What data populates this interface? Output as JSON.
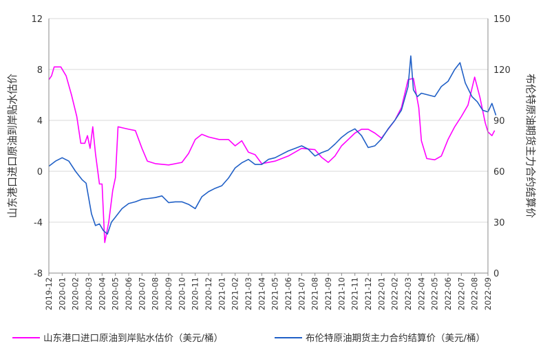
{
  "chart_data": {
    "type": "line",
    "title": "",
    "left_axis": {
      "label": "山东港口进口原油到岸贴水估价",
      "ticks": [
        "12",
        "8",
        "4",
        "0",
        "-4",
        "-8"
      ],
      "ylim": [
        -8,
        12
      ]
    },
    "right_axis": {
      "label": "布伦特原油期货主力合约结算价",
      "ticks": [
        "150",
        "120",
        "90",
        "60",
        "30",
        "0"
      ],
      "ylim": [
        0,
        150
      ]
    },
    "x_ticks": [
      "2019-12",
      "2020-01",
      "2020-02",
      "2020-03",
      "2020-04",
      "2020-05",
      "2020-06",
      "2020-07",
      "2020-08",
      "2020-09",
      "2020-10",
      "2020-11",
      "2020-12",
      "2021-01",
      "2021-02",
      "2021-03",
      "2021-04",
      "2021-05",
      "2021-06",
      "2021-07",
      "2021-08",
      "2021-09",
      "2021-10",
      "2021-11",
      "2021-12",
      "2022-01",
      "2022-02",
      "2022-03",
      "2022-04",
      "2022-05",
      "2022-06",
      "2022-07",
      "2022-08",
      "2022-09"
    ],
    "grid": true,
    "legend_position": "bottom",
    "series": [
      {
        "name": "山东港口进口原油到岸贴水估价（美元/桶）",
        "axis": "left",
        "color": "#ff00ff",
        "points": [
          [
            0,
            7.2
          ],
          [
            0.2,
            7.5
          ],
          [
            0.4,
            8.2
          ],
          [
            0.9,
            8.2
          ],
          [
            1.3,
            7.5
          ],
          [
            1.7,
            6.0
          ],
          [
            2.1,
            4.3
          ],
          [
            2.4,
            2.2
          ],
          [
            2.7,
            2.2
          ],
          [
            2.9,
            2.8
          ],
          [
            3.1,
            1.8
          ],
          [
            3.3,
            3.5
          ],
          [
            3.5,
            1.4
          ],
          [
            3.8,
            -1.0
          ],
          [
            4.0,
            -1.0
          ],
          [
            4.2,
            -5.6
          ],
          [
            4.5,
            -4.0
          ],
          [
            4.8,
            -1.5
          ],
          [
            5.0,
            -0.5
          ],
          [
            5.2,
            3.5
          ],
          [
            5.6,
            3.4
          ],
          [
            6.0,
            3.3
          ],
          [
            6.5,
            3.2
          ],
          [
            7.0,
            1.8
          ],
          [
            7.4,
            0.8
          ],
          [
            8.0,
            0.6
          ],
          [
            9.0,
            0.5
          ],
          [
            10.0,
            0.7
          ],
          [
            10.5,
            1.4
          ],
          [
            11.0,
            2.5
          ],
          [
            11.5,
            2.9
          ],
          [
            12.0,
            2.7
          ],
          [
            12.8,
            2.5
          ],
          [
            13.5,
            2.5
          ],
          [
            14.0,
            2.0
          ],
          [
            14.5,
            2.4
          ],
          [
            15.0,
            1.5
          ],
          [
            15.5,
            1.3
          ],
          [
            16.0,
            0.6
          ],
          [
            17.0,
            0.8
          ],
          [
            18.0,
            1.2
          ],
          [
            19.0,
            1.8
          ],
          [
            20.0,
            1.7
          ],
          [
            20.5,
            1.1
          ],
          [
            21.0,
            0.7
          ],
          [
            21.5,
            1.2
          ],
          [
            22.0,
            2.0
          ],
          [
            22.5,
            2.5
          ],
          [
            23.0,
            3.0
          ],
          [
            23.5,
            3.3
          ],
          [
            24.0,
            3.3
          ],
          [
            24.5,
            3.0
          ],
          [
            25.0,
            2.6
          ],
          [
            25.5,
            3.3
          ],
          [
            26.0,
            4.0
          ],
          [
            26.5,
            5.0
          ],
          [
            27.0,
            7.2
          ],
          [
            27.4,
            7.3
          ],
          [
            27.8,
            5.0
          ],
          [
            28.0,
            2.4
          ],
          [
            28.4,
            1.0
          ],
          [
            29.0,
            0.9
          ],
          [
            29.5,
            1.2
          ],
          [
            30.0,
            2.5
          ],
          [
            30.5,
            3.5
          ],
          [
            31.0,
            4.3
          ],
          [
            31.5,
            5.2
          ],
          [
            32.0,
            7.4
          ],
          [
            32.4,
            5.8
          ],
          [
            32.8,
            3.8
          ],
          [
            33.0,
            3.1
          ],
          [
            33.3,
            2.8
          ],
          [
            33.5,
            3.2
          ]
        ]
      },
      {
        "name": "布伦特原油期货主力合约结算价（美元/桶）",
        "axis": "right",
        "color": "#1f5fc6",
        "points": [
          [
            0,
            63
          ],
          [
            0.5,
            66
          ],
          [
            1.0,
            68
          ],
          [
            1.5,
            66
          ],
          [
            2.0,
            60
          ],
          [
            2.5,
            55
          ],
          [
            2.8,
            53
          ],
          [
            3.2,
            35
          ],
          [
            3.5,
            28
          ],
          [
            3.8,
            29
          ],
          [
            4.1,
            25
          ],
          [
            4.4,
            23
          ],
          [
            4.7,
            30
          ],
          [
            5.0,
            33
          ],
          [
            5.5,
            38
          ],
          [
            6.0,
            41
          ],
          [
            6.5,
            42
          ],
          [
            7.0,
            43.5
          ],
          [
            7.5,
            44
          ],
          [
            8.0,
            44.5
          ],
          [
            8.5,
            45.5
          ],
          [
            9.0,
            41.5
          ],
          [
            9.5,
            42
          ],
          [
            10.0,
            42
          ],
          [
            10.5,
            40.5
          ],
          [
            11.0,
            38
          ],
          [
            11.5,
            45
          ],
          [
            12.0,
            48
          ],
          [
            12.5,
            50
          ],
          [
            13.0,
            51.5
          ],
          [
            13.5,
            56
          ],
          [
            14.0,
            62
          ],
          [
            14.5,
            65
          ],
          [
            15.0,
            67
          ],
          [
            15.5,
            64
          ],
          [
            16.0,
            64
          ],
          [
            16.5,
            67
          ],
          [
            17.0,
            68
          ],
          [
            17.5,
            70
          ],
          [
            18.0,
            72
          ],
          [
            18.5,
            73.5
          ],
          [
            19.0,
            75
          ],
          [
            19.5,
            73
          ],
          [
            20.0,
            69
          ],
          [
            20.5,
            71
          ],
          [
            21.0,
            72.5
          ],
          [
            21.5,
            76
          ],
          [
            22.0,
            80
          ],
          [
            22.5,
            83
          ],
          [
            23.0,
            85
          ],
          [
            23.5,
            81
          ],
          [
            24.0,
            74
          ],
          [
            24.5,
            75
          ],
          [
            25.0,
            79
          ],
          [
            25.5,
            85
          ],
          [
            26.0,
            90
          ],
          [
            26.5,
            96
          ],
          [
            27.0,
            110
          ],
          [
            27.2,
            128
          ],
          [
            27.4,
            108
          ],
          [
            27.7,
            104
          ],
          [
            28.0,
            106
          ],
          [
            28.5,
            105
          ],
          [
            29.0,
            104
          ],
          [
            29.5,
            110
          ],
          [
            30.0,
            113
          ],
          [
            30.5,
            120
          ],
          [
            30.9,
            124
          ],
          [
            31.3,
            112
          ],
          [
            31.8,
            104
          ],
          [
            32.2,
            101
          ],
          [
            32.6,
            96
          ],
          [
            33.0,
            95
          ],
          [
            33.3,
            100
          ],
          [
            33.6,
            93
          ]
        ]
      }
    ]
  }
}
